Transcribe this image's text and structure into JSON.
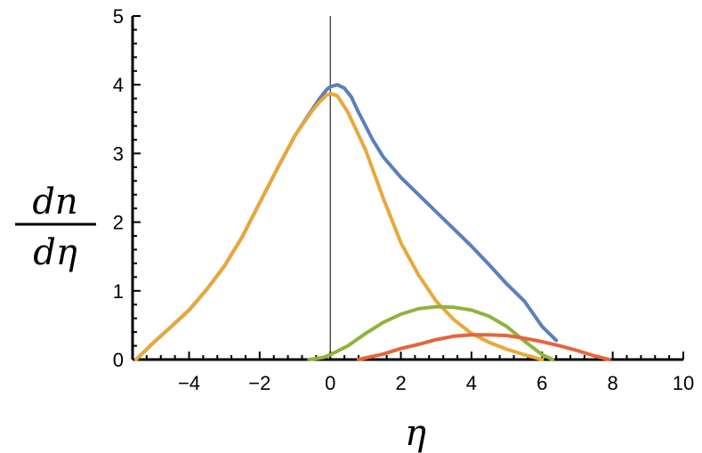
{
  "chart_data": {
    "type": "line",
    "xlabel": "η",
    "ylabel_numerator": "dn",
    "ylabel_denominator": "dη",
    "xlim": [
      -5.6,
      10
    ],
    "ylim": [
      0,
      5
    ],
    "xticks": [
      -4,
      -2,
      0,
      2,
      4,
      6,
      8,
      10
    ],
    "yticks": [
      0,
      1,
      2,
      3,
      4,
      5
    ],
    "x_tick_labels": [
      "−4",
      "−2",
      "0",
      "2",
      "4",
      "6",
      "8",
      "10"
    ],
    "y_tick_labels": [
      "0",
      "1",
      "2",
      "3",
      "4",
      "5"
    ],
    "grid": false,
    "vertical_line_x": 0,
    "series": [
      {
        "color": "#5b7fbe",
        "x": [
          -5.5,
          -5.0,
          -4.5,
          -4.0,
          -3.5,
          -3.0,
          -2.5,
          -2.0,
          -1.5,
          -1.0,
          -0.5,
          -0.3,
          -0.1,
          0.0,
          0.2,
          0.4,
          0.6,
          0.8,
          1.0,
          1.2,
          1.5,
          2.0,
          2.5,
          3.0,
          3.5,
          4.0,
          4.5,
          5.0,
          5.5,
          6.0,
          6.4
        ],
        "y": [
          0.0,
          0.25,
          0.48,
          0.72,
          1.02,
          1.36,
          1.78,
          2.28,
          2.78,
          3.26,
          3.65,
          3.8,
          3.93,
          3.97,
          4.0,
          3.95,
          3.82,
          3.6,
          3.4,
          3.2,
          2.95,
          2.65,
          2.4,
          2.15,
          1.9,
          1.65,
          1.38,
          1.1,
          0.85,
          0.48,
          0.28
        ]
      },
      {
        "color": "#e8a83a",
        "x": [
          -5.5,
          -5.0,
          -4.5,
          -4.0,
          -3.5,
          -3.0,
          -2.5,
          -2.0,
          -1.5,
          -1.0,
          -0.5,
          -0.3,
          -0.1,
          0.0,
          0.2,
          0.5,
          1.0,
          1.5,
          2.0,
          2.5,
          3.0,
          3.5,
          4.0,
          4.5,
          5.0,
          5.5,
          6.0
        ],
        "y": [
          0.0,
          0.25,
          0.48,
          0.72,
          1.02,
          1.36,
          1.78,
          2.28,
          2.78,
          3.26,
          3.63,
          3.75,
          3.85,
          3.87,
          3.84,
          3.6,
          3.05,
          2.35,
          1.7,
          1.23,
          0.85,
          0.58,
          0.38,
          0.25,
          0.15,
          0.07,
          0.0
        ]
      },
      {
        "color": "#8eb43a",
        "x": [
          -0.6,
          -0.2,
          0.0,
          0.5,
          1.0,
          1.5,
          2.0,
          2.5,
          3.0,
          3.5,
          4.0,
          4.5,
          5.0,
          5.5,
          6.0,
          6.3
        ],
        "y": [
          0.0,
          0.03,
          0.07,
          0.2,
          0.38,
          0.54,
          0.66,
          0.74,
          0.77,
          0.76,
          0.72,
          0.63,
          0.48,
          0.27,
          0.07,
          0.0
        ]
      },
      {
        "color": "#e6643c",
        "x": [
          0.8,
          1.5,
          2.0,
          2.5,
          3.0,
          3.5,
          4.0,
          4.5,
          5.0,
          5.5,
          6.0,
          6.5,
          7.0,
          7.5,
          7.9
        ],
        "y": [
          0.0,
          0.08,
          0.16,
          0.22,
          0.29,
          0.34,
          0.36,
          0.36,
          0.35,
          0.31,
          0.26,
          0.2,
          0.13,
          0.05,
          0.0
        ]
      }
    ]
  }
}
